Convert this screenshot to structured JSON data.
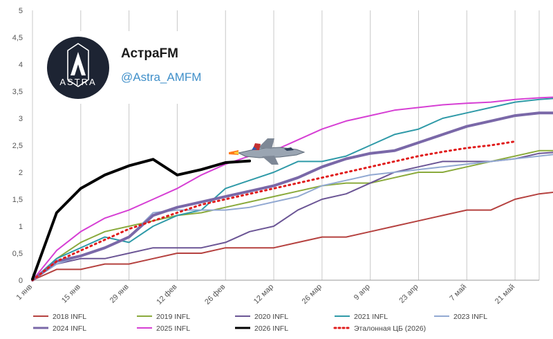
{
  "brand": {
    "name": "АстраFM",
    "handle": "@Astra_AMFM",
    "logo_text": "ASTRA"
  },
  "chart_data": {
    "type": "line",
    "title": "",
    "xlabel": "",
    "ylabel": "",
    "ylim": [
      0,
      5
    ],
    "y_ticks": [
      "0",
      "0,5",
      "1",
      "1,5",
      "2",
      "2,5",
      "3",
      "3,5",
      "4",
      "4,5",
      "5"
    ],
    "x_tick_labels": [
      "1 янв",
      "15 янв",
      "29 янв",
      "12 фев",
      "26 фев",
      "12 мар",
      "26 мар",
      "9 апр",
      "23 апр",
      "7 май",
      "21 май"
    ],
    "x_unit": "week",
    "x_range": [
      0,
      21
    ],
    "grid": "vertical",
    "legend_position": "bottom",
    "series": [
      {
        "name": "2018 INFL",
        "color": "#b5413f",
        "width": 2,
        "values": [
          0,
          0.2,
          0.2,
          0.3,
          0.3,
          0.4,
          0.5,
          0.5,
          0.6,
          0.6,
          0.6,
          0.7,
          0.8,
          0.8,
          0.9,
          1.0,
          1.1,
          1.2,
          1.3,
          1.3,
          1.5,
          1.6,
          1.65
        ]
      },
      {
        "name": "2019 INFL",
        "color": "#8aaa3c",
        "width": 2,
        "values": [
          0,
          0.4,
          0.7,
          0.9,
          1.0,
          1.1,
          1.2,
          1.25,
          1.35,
          1.45,
          1.55,
          1.65,
          1.75,
          1.8,
          1.8,
          1.9,
          2.0,
          2.0,
          2.1,
          2.2,
          2.3,
          2.4,
          2.4
        ]
      },
      {
        "name": "2020 INFL",
        "color": "#6b5595",
        "width": 2,
        "values": [
          0,
          0.3,
          0.4,
          0.4,
          0.5,
          0.6,
          0.6,
          0.6,
          0.7,
          0.9,
          1.0,
          1.3,
          1.5,
          1.6,
          1.8,
          2.0,
          2.1,
          2.2,
          2.2,
          2.2,
          2.25,
          2.35,
          2.38
        ]
      },
      {
        "name": "2021 INFL",
        "color": "#2f9aa8",
        "width": 2,
        "values": [
          0,
          0.4,
          0.6,
          0.8,
          0.7,
          1.0,
          1.2,
          1.3,
          1.7,
          1.85,
          2.0,
          2.2,
          2.2,
          2.3,
          2.5,
          2.7,
          2.8,
          3.0,
          3.1,
          3.2,
          3.3,
          3.35,
          3.38
        ]
      },
      {
        "name": "2023 INFL",
        "color": "#92a9d2",
        "width": 2,
        "values": [
          0,
          0.3,
          0.45,
          0.6,
          0.8,
          1.25,
          1.3,
          1.3,
          1.3,
          1.35,
          1.45,
          1.55,
          1.75,
          1.85,
          1.95,
          2.0,
          2.05,
          2.1,
          2.15,
          2.2,
          2.25,
          2.3,
          2.35
        ]
      },
      {
        "name": "2024 INFL",
        "color": "#7a68a8",
        "width": 4,
        "values": [
          0,
          0.35,
          0.45,
          0.6,
          0.8,
          1.2,
          1.35,
          1.45,
          1.55,
          1.65,
          1.75,
          1.9,
          2.1,
          2.25,
          2.35,
          2.4,
          2.55,
          2.7,
          2.85,
          2.95,
          3.05,
          3.1,
          3.1
        ]
      },
      {
        "name": "2025 INFL",
        "color": "#d63fd4",
        "width": 2,
        "values": [
          0,
          0.55,
          0.9,
          1.15,
          1.3,
          1.5,
          1.7,
          1.95,
          2.15,
          2.3,
          2.4,
          2.6,
          2.8,
          2.95,
          3.05,
          3.15,
          3.2,
          3.25,
          3.28,
          3.3,
          3.35,
          3.38,
          3.4
        ]
      },
      {
        "name": "2026 INFL",
        "color": "#000000",
        "width": 4,
        "values": [
          0.02,
          1.25,
          1.7,
          1.95,
          2.12,
          2.24,
          1.95,
          2.05,
          2.18,
          2.21
        ]
      },
      {
        "name": "Эталонная ЦБ (2026)",
        "color": "#e01b1b",
        "width": 3,
        "dotted": true,
        "values": [
          0,
          0.35,
          0.55,
          0.75,
          0.95,
          1.1,
          1.25,
          1.4,
          1.5,
          1.6,
          1.7,
          1.8,
          1.9,
          2.0,
          2.1,
          2.2,
          2.3,
          2.38,
          2.45,
          2.5,
          2.57
        ]
      }
    ]
  }
}
